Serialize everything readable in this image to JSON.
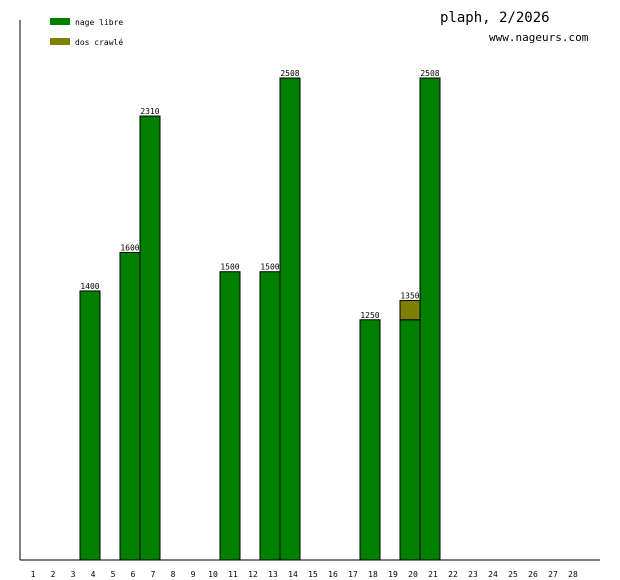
{
  "chart_data": {
    "type": "bar",
    "stacked": true,
    "title": "plaph, 2/2026",
    "subtitle": "www.nageurs.com",
    "categories": [
      "1",
      "2",
      "3",
      "4",
      "5",
      "6",
      "7",
      "8",
      "9",
      "10",
      "11",
      "12",
      "13",
      "14",
      "15",
      "16",
      "17",
      "18",
      "19",
      "20",
      "21",
      "22",
      "23",
      "24",
      "25",
      "26",
      "27",
      "28"
    ],
    "series": [
      {
        "name": "nage libre",
        "color": "#008000",
        "values": [
          0,
          0,
          1400,
          0,
          1600,
          2310,
          0,
          0,
          0,
          1500,
          0,
          1500,
          2508,
          0,
          0,
          0,
          1250,
          0,
          1250,
          2508,
          0,
          0,
          0,
          0,
          0,
          0,
          0,
          0
        ]
      },
      {
        "name": "dos crawlé",
        "color": "#808000",
        "values": [
          0,
          0,
          0,
          0,
          0,
          0,
          0,
          0,
          0,
          0,
          0,
          0,
          0,
          0,
          0,
          0,
          0,
          0,
          100,
          0,
          0,
          0,
          0,
          0,
          0,
          0,
          0,
          0
        ]
      }
    ],
    "totals": [
      "",
      "",
      "1400",
      "",
      "1600",
      "2310",
      "",
      "",
      "",
      "1500",
      "",
      "1500",
      "2508",
      "",
      "",
      "",
      "1250",
      "",
      "1350",
      "2508",
      "",
      "",
      "",
      "",
      "",
      "",
      "",
      ""
    ],
    "ylim": [
      0,
      2508
    ],
    "legend_position": "top-left",
    "grid": false
  }
}
